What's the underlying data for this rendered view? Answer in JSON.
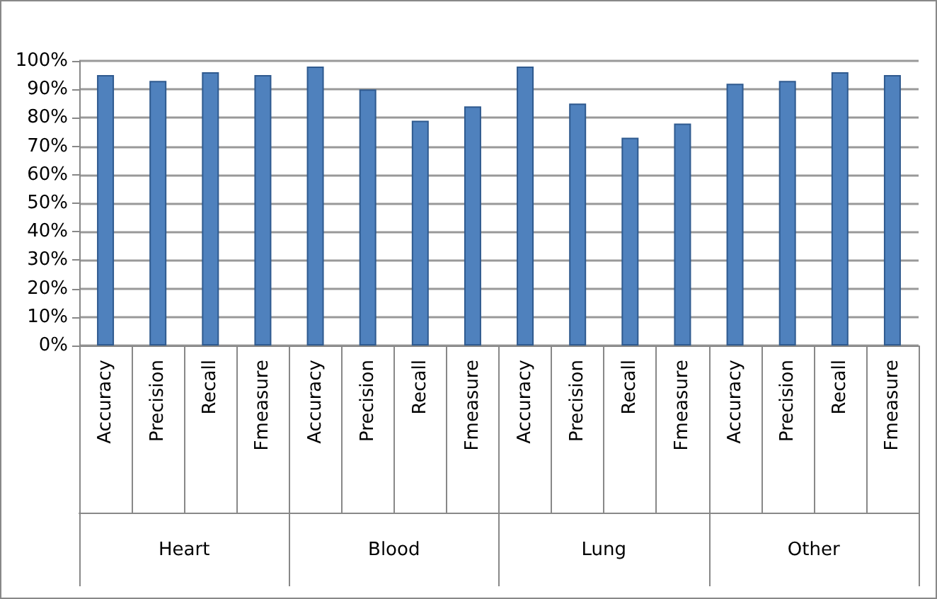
{
  "chart_data": {
    "type": "bar",
    "categories": [
      "Accuracy",
      "Precision",
      "Recall",
      "Fmeasure",
      "Accuracy",
      "Precision",
      "Recall",
      "Fmeasure",
      "Accuracy",
      "Precision",
      "Recall",
      "Fmeasure",
      "Accuracy",
      "Precision",
      "Recall",
      "Fmeasure"
    ],
    "series": [
      {
        "color": "#4f81bd",
        "values": [
          95,
          93,
          96,
          95,
          98,
          90,
          79,
          84,
          98,
          85,
          73,
          78,
          92,
          93,
          96,
          95
        ]
      }
    ],
    "annotations": [
      "Heart",
      "Blood",
      "Lung",
      "Other"
    ],
    "ylim": [
      0,
      100
    ],
    "yticks": [
      {
        "value": 0,
        "label": "0%"
      },
      {
        "value": 10,
        "label": "10%"
      },
      {
        "value": 20,
        "label": "20%"
      },
      {
        "value": 30,
        "label": "30%"
      },
      {
        "value": 40,
        "label": "40%"
      },
      {
        "value": 50,
        "label": "50%"
      },
      {
        "value": 60,
        "label": "60%"
      },
      {
        "value": 70,
        "label": "70%"
      },
      {
        "value": 80,
        "label": "80%"
      },
      {
        "value": 90,
        "label": "90%"
      },
      {
        "value": 100,
        "label": "100%"
      }
    ],
    "grid": "y"
  }
}
